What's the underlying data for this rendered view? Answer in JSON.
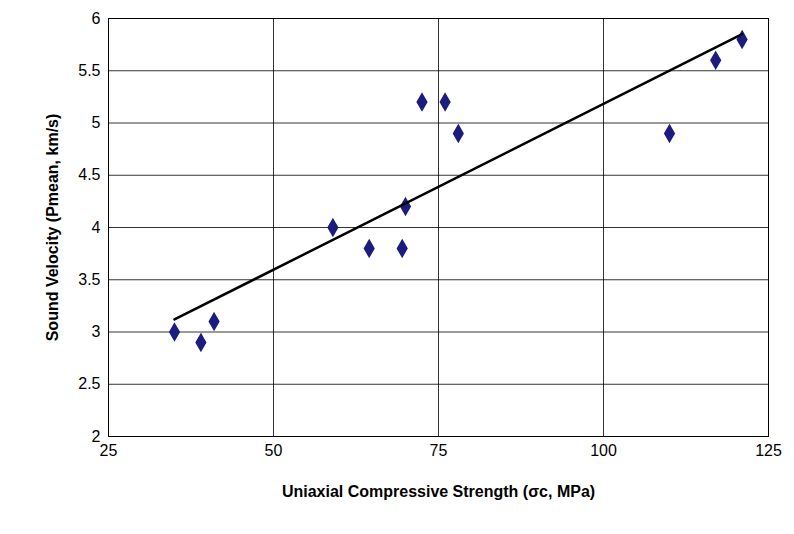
{
  "chart_data": {
    "type": "scatter",
    "x_label": "Uniaxial Compressive Strength (σc, MPa)",
    "y_label": "Sound Velocity (Pmean, km/s)",
    "xlim": [
      25,
      125
    ],
    "xticks": [
      25,
      50,
      75,
      100,
      125
    ],
    "ylim": [
      2,
      6
    ],
    "yticks": [
      2,
      2.5,
      3,
      3.5,
      4,
      4.5,
      5,
      5.5,
      6
    ],
    "grid": true,
    "series": [
      {
        "type": "scatter",
        "marker": "diamond",
        "color": "#1c1c80",
        "x": [
          35,
          39,
          41,
          59,
          64.5,
          69.5,
          70,
          72.5,
          76,
          78,
          110,
          117,
          121
        ],
        "values": [
          3.0,
          2.9,
          3.1,
          4.0,
          3.8,
          3.8,
          4.2,
          5.2,
          5.2,
          4.9,
          4.9,
          5.6,
          5.8
        ]
      },
      {
        "type": "line",
        "line_style": "solid",
        "color": "#000000",
        "x": [
          35,
          121
        ],
        "values": [
          3.12,
          5.85
        ]
      }
    ]
  }
}
